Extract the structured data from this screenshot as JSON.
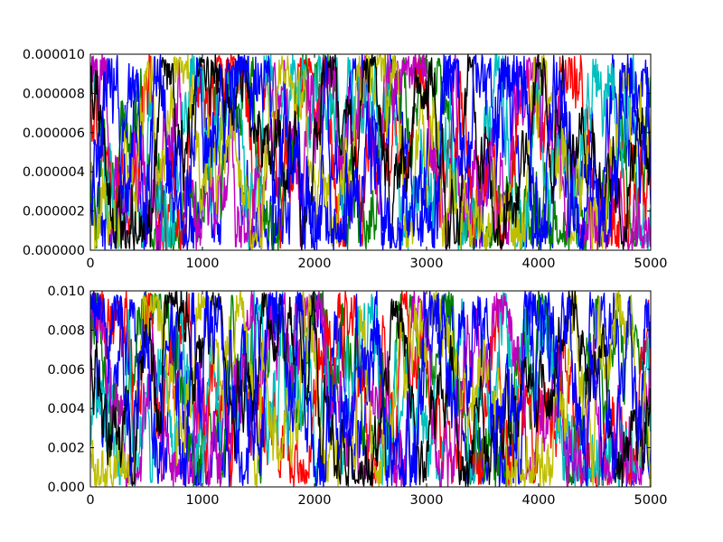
{
  "chart_data": [
    {
      "type": "line",
      "title": "",
      "xlabel": "",
      "ylabel": "",
      "xlim": [
        0,
        5000
      ],
      "ylim": [
        0,
        1e-05
      ],
      "xticks": [
        0,
        1000,
        2000,
        3000,
        4000,
        5000
      ],
      "xtick_labels": [
        "0",
        "1000",
        "2000",
        "3000",
        "4000",
        "5000"
      ],
      "yticks": [
        0,
        2e-06,
        4e-06,
        6e-06,
        8e-06,
        1e-05
      ],
      "ytick_labels": [
        "0.000000",
        "0.000002",
        "0.000004",
        "0.000006",
        "0.000008",
        "0.000010"
      ],
      "grid": false,
      "legend": "none",
      "series": [
        {
          "color": "#0000ff",
          "steps": 5000,
          "seed": 11,
          "start": 2e-06,
          "walk": 0.18
        },
        {
          "color": "#008000",
          "steps": 5000,
          "seed": 23,
          "start": 5e-06,
          "walk": 0.15
        },
        {
          "color": "#ff0000",
          "steps": 5000,
          "seed": 37,
          "start": 6e-06,
          "walk": 0.17
        },
        {
          "color": "#00bfbf",
          "steps": 5000,
          "seed": 41,
          "start": 9e-06,
          "walk": 0.19
        },
        {
          "color": "#bf00bf",
          "steps": 5000,
          "seed": 53,
          "start": 8.5e-06,
          "walk": 0.17
        },
        {
          "color": "#bfbf00",
          "steps": 5000,
          "seed": 67,
          "start": 4e-06,
          "walk": 0.16
        },
        {
          "color": "#000000",
          "steps": 5000,
          "seed": 79,
          "start": 7.5e-06,
          "walk": 0.14
        },
        {
          "color": "#0000ff",
          "steps": 5000,
          "seed": 83,
          "start": 3e-06,
          "walk": 0.2
        }
      ]
    },
    {
      "type": "line",
      "title": "",
      "xlabel": "",
      "ylabel": "",
      "xlim": [
        0,
        5000
      ],
      "ylim": [
        0,
        0.01
      ],
      "xticks": [
        0,
        1000,
        2000,
        3000,
        4000,
        5000
      ],
      "xtick_labels": [
        "0",
        "1000",
        "2000",
        "3000",
        "4000",
        "5000"
      ],
      "yticks": [
        0,
        0.002,
        0.004,
        0.006,
        0.008,
        0.01
      ],
      "ytick_labels": [
        "0.000",
        "0.002",
        "0.004",
        "0.006",
        "0.008",
        "0.010"
      ],
      "grid": false,
      "legend": "none",
      "series": [
        {
          "color": "#0000ff",
          "steps": 5000,
          "seed": 101,
          "start": 0.0065,
          "walk": 0.18
        },
        {
          "color": "#008000",
          "steps": 5000,
          "seed": 113,
          "start": 0.008,
          "walk": 0.15
        },
        {
          "color": "#ff0000",
          "steps": 5000,
          "seed": 127,
          "start": 0.0075,
          "walk": 0.17
        },
        {
          "color": "#00bfbf",
          "steps": 5000,
          "seed": 131,
          "start": 0.002,
          "walk": 0.19
        },
        {
          "color": "#bf00bf",
          "steps": 5000,
          "seed": 149,
          "start": 0.005,
          "walk": 0.17
        },
        {
          "color": "#bfbf00",
          "steps": 5000,
          "seed": 151,
          "start": 0.003,
          "walk": 0.16
        },
        {
          "color": "#000000",
          "steps": 5000,
          "seed": 163,
          "start": 0.0055,
          "walk": 0.14
        },
        {
          "color": "#0000ff",
          "steps": 5000,
          "seed": 173,
          "start": 0.009,
          "walk": 0.2
        }
      ]
    }
  ]
}
